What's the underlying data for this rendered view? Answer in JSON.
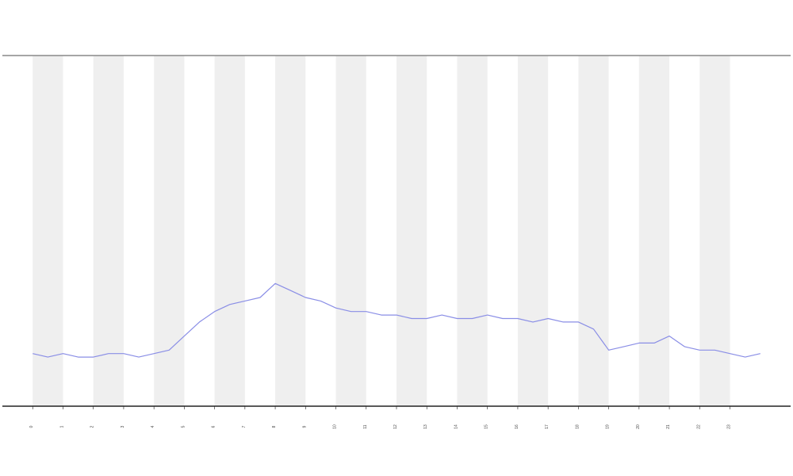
{
  "chart_data": {
    "type": "line",
    "x": [
      0,
      0.5,
      1,
      1.5,
      2,
      2.5,
      3,
      3.5,
      4,
      4.5,
      5,
      5.5,
      6,
      6.5,
      7,
      7.5,
      8,
      8.5,
      9,
      9.5,
      10,
      10.5,
      11,
      11.5,
      12,
      12.5,
      13,
      13.5,
      14,
      14.5,
      15,
      15.5,
      16,
      16.5,
      17,
      17.5,
      18,
      18.5,
      19,
      19.5,
      20,
      20.5,
      21,
      21.5,
      22,
      22.5,
      23,
      23.5,
      24
    ],
    "series": [
      {
        "color": "#8a8ee6",
        "values": [
          15,
          14,
          15,
          14,
          14,
          15,
          15,
          14,
          15,
          16,
          20,
          24,
          27,
          29,
          30,
          31,
          35,
          33,
          31,
          30,
          28,
          27,
          27,
          26,
          26,
          25,
          25,
          26,
          25,
          25,
          26,
          25,
          25,
          24,
          25,
          24,
          24,
          22,
          16,
          17,
          18,
          18,
          20,
          17,
          16,
          16,
          15,
          14,
          15
        ]
      }
    ],
    "xlim": [
      -1,
      25
    ],
    "ylim": [
      0,
      100
    ],
    "xticks": [
      0,
      1,
      2,
      3,
      4,
      5,
      6,
      7,
      8,
      9,
      10,
      11,
      12,
      13,
      14,
      15,
      16,
      17,
      18,
      19,
      20,
      21,
      22,
      23
    ],
    "bands": true
  }
}
